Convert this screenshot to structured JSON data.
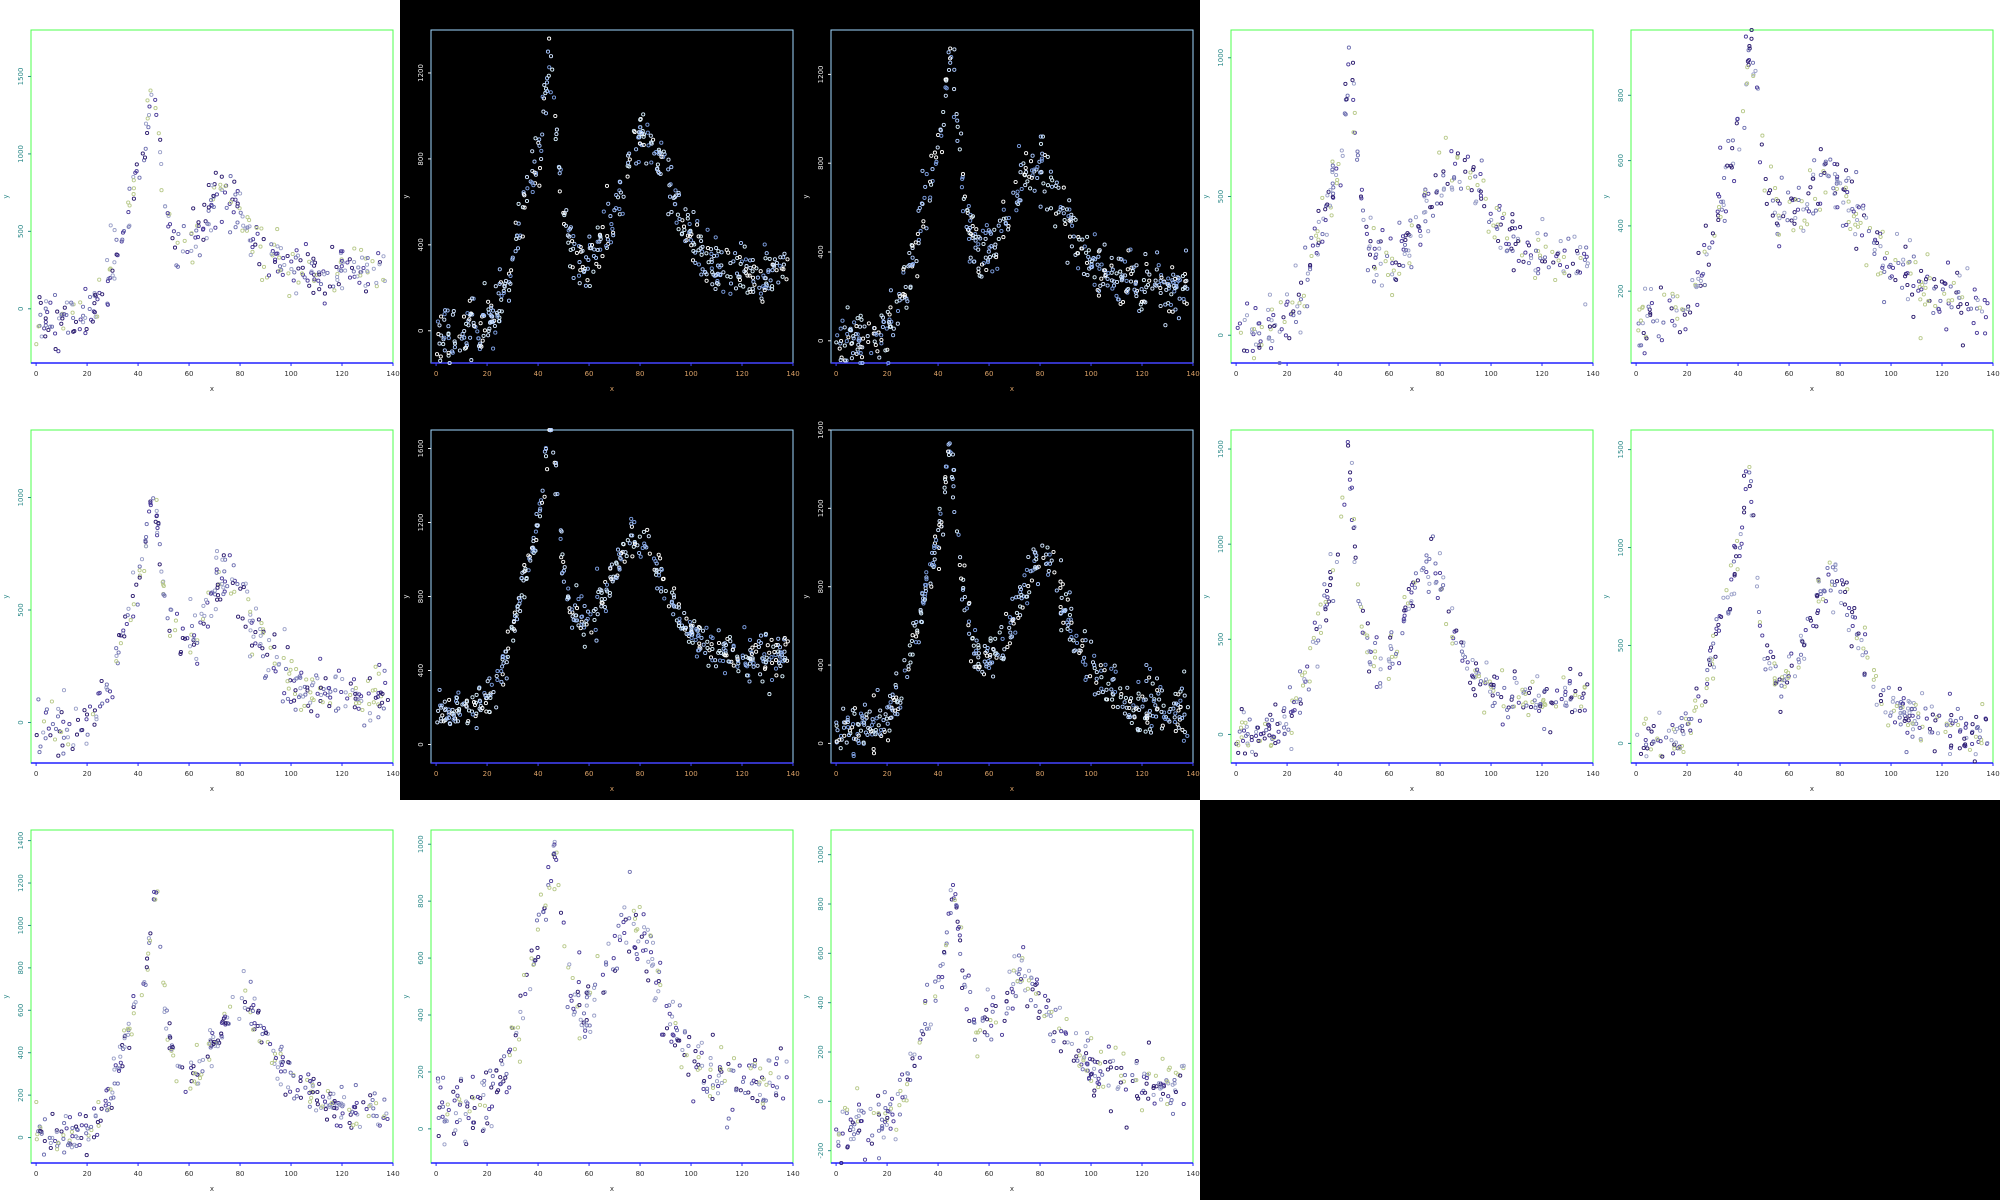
{
  "layout": {
    "rows": 3,
    "cols": 5,
    "panel_count": 13,
    "empty_cells": [
      "row3-col4",
      "row3-col5"
    ]
  },
  "theme": {
    "light": {
      "background": "#ffffff",
      "frame": "#4cff4c",
      "xaxis": "#2020ff",
      "ytick": "#2d8a8a",
      "xtick": "#303030",
      "points": [
        "#2b1b6e",
        "#4b3c9a",
        "#6d6fb0",
        "#9aa0c8",
        "#b8c98a"
      ]
    },
    "dark": {
      "background": "#000000",
      "frame": "#9fd8ff",
      "xaxis": "#4444ff",
      "ytick": "#e8e8e8",
      "xtick": "#d9a066",
      "points": [
        "#ffffff",
        "#cfe3ff",
        "#a9c8ff",
        "#7d9fe0",
        "#d8f0ff"
      ]
    }
  },
  "chart_data": [
    {
      "id": 1,
      "type": "scatter",
      "style": "light",
      "xlabel": "x",
      "ylabel": "y",
      "xlim": [
        -2,
        140
      ],
      "ylim": [
        -350,
        1800
      ],
      "xticks": [
        "0",
        "20",
        "40",
        "60",
        "80",
        "100",
        "120",
        "140"
      ],
      "yticks": [
        "0",
        "500",
        "1000",
        "1500"
      ],
      "ytick_values": [
        0,
        500,
        1000,
        1500
      ],
      "profile": {
        "base": -120,
        "tail": 250,
        "peak1": {
          "x": 46,
          "h": 1500,
          "w": 3.2
        },
        "bump": {
          "x": 74,
          "h": 870,
          "w": 15
        },
        "noise": 110
      }
    },
    {
      "id": 2,
      "type": "scatter",
      "style": "dark",
      "xlabel": "x",
      "ylabel": "y",
      "xlim": [
        -2,
        140
      ],
      "ylim": [
        -150,
        1400
      ],
      "xticks": [
        "0",
        "20",
        "40",
        "60",
        "80",
        "100",
        "120",
        "140"
      ],
      "yticks": [
        "0",
        "400",
        "800",
        "1200"
      ],
      "ytick_values": [
        0,
        400,
        800,
        1200
      ],
      "profile": {
        "base": -40,
        "tail": 220,
        "peak1": {
          "x": 45,
          "h": 1230,
          "w": 3.3
        },
        "bump": {
          "x": 82,
          "h": 1020,
          "w": 14
        },
        "noise": 80
      }
    },
    {
      "id": 3,
      "type": "scatter",
      "style": "dark",
      "xlabel": "x",
      "ylabel": "y",
      "xlim": [
        -2,
        140
      ],
      "ylim": [
        -100,
        1400
      ],
      "xticks": [
        "0",
        "20",
        "40",
        "60",
        "80",
        "100",
        "120",
        "140"
      ],
      "yticks": [
        "0",
        "400",
        "800",
        "1200"
      ],
      "ytick_values": [
        0,
        400,
        800,
        1200
      ],
      "profile": {
        "base": -30,
        "tail": 200,
        "peak1": {
          "x": 45,
          "h": 1250,
          "w": 3.4
        },
        "bump": {
          "x": 78,
          "h": 860,
          "w": 17
        },
        "noise": 80
      }
    },
    {
      "id": 4,
      "type": "scatter",
      "style": "light",
      "xlabel": "x",
      "ylabel": "y",
      "xlim": [
        -2,
        140
      ],
      "ylim": [
        -100,
        1100
      ],
      "xticks": [
        "0",
        "20",
        "40",
        "60",
        "80",
        "100",
        "120",
        "140"
      ],
      "yticks": [
        "0",
        "500",
        "1000"
      ],
      "ytick_values": [
        0,
        500,
        1000
      ],
      "profile": {
        "base": 0,
        "tail": 210,
        "peak1": {
          "x": 45,
          "h": 900,
          "w": 3.0
        },
        "bump": {
          "x": 86,
          "h": 610,
          "w": 19
        },
        "noise": 65
      }
    },
    {
      "id": 5,
      "type": "scatter",
      "style": "light",
      "xlabel": "x",
      "ylabel": "y",
      "xlim": [
        -2,
        140
      ],
      "ylim": [
        -20,
        1000
      ],
      "xticks": [
        "0",
        "20",
        "40",
        "60",
        "80",
        "100",
        "120",
        "140"
      ],
      "yticks": [
        "200",
        "400",
        "600",
        "800"
      ],
      "ytick_values": [
        200,
        400,
        600,
        800
      ],
      "profile": {
        "base": 90,
        "tail": 100,
        "peak1": {
          "x": 45,
          "h": 780,
          "w": 3.6
        },
        "bump": {
          "x": 75,
          "h": 520,
          "w": 22
        },
        "noise": 65
      }
    },
    {
      "id": 6,
      "type": "scatter",
      "style": "light",
      "xlabel": "x",
      "ylabel": "y",
      "xlim": [
        -2,
        140
      ],
      "ylim": [
        -180,
        1300
      ],
      "xticks": [
        "0",
        "20",
        "40",
        "60",
        "80",
        "100",
        "120",
        "140"
      ],
      "yticks": [
        "0",
        "500",
        "1000"
      ],
      "ytick_values": [
        0,
        500,
        1000
      ],
      "profile": {
        "base": -60,
        "tail": 90,
        "peak1": {
          "x": 46,
          "h": 1050,
          "w": 3.2
        },
        "bump": {
          "x": 75,
          "h": 770,
          "w": 15
        },
        "noise": 75
      }
    },
    {
      "id": 7,
      "type": "scatter",
      "style": "dark",
      "xlabel": "x",
      "ylabel": "y",
      "xlim": [
        -2,
        140
      ],
      "ylim": [
        -100,
        1700
      ],
      "xticks": [
        "0",
        "20",
        "40",
        "60",
        "80",
        "100",
        "120",
        "140"
      ],
      "yticks": [
        "0",
        "400",
        "800",
        "1200",
        "1600"
      ],
      "ytick_values": [
        0,
        400,
        800,
        1200,
        1600
      ],
      "profile": {
        "base": 150,
        "tail": 410,
        "peak1": {
          "x": 45,
          "h": 1480,
          "w": 3.3
        },
        "bump": {
          "x": 78,
          "h": 1020,
          "w": 17
        },
        "noise": 70
      }
    },
    {
      "id": 8,
      "type": "scatter",
      "style": "dark",
      "xlabel": "x",
      "ylabel": "y",
      "xlim": [
        -2,
        140
      ],
      "ylim": [
        -100,
        1600
      ],
      "xticks": [
        "0",
        "20",
        "40",
        "60",
        "80",
        "100",
        "120",
        "140"
      ],
      "yticks": [
        "0",
        "400",
        "800",
        "1200",
        "1600"
      ],
      "ytick_values": [
        0,
        400,
        800,
        1200,
        1600
      ],
      "profile": {
        "base": 50,
        "tail": 100,
        "peak1": {
          "x": 45,
          "h": 1430,
          "w": 3.4
        },
        "bump": {
          "x": 80,
          "h": 1010,
          "w": 15
        },
        "noise": 80
      }
    },
    {
      "id": 9,
      "type": "scatter",
      "style": "light",
      "xlabel": "x",
      "ylabel": "y",
      "xlim": [
        -2,
        140
      ],
      "ylim": [
        -150,
        1600
      ],
      "xticks": [
        "0",
        "20",
        "40",
        "60",
        "80",
        "100",
        "120",
        "140"
      ],
      "yticks": [
        "0",
        "500",
        "1000",
        "1500"
      ],
      "ytick_values": [
        0,
        500,
        1000,
        1500
      ],
      "profile": {
        "base": -30,
        "tail": 180,
        "peak1": {
          "x": 44,
          "h": 1400,
          "w": 3.0
        },
        "bump": {
          "x": 75,
          "h": 1020,
          "w": 12
        },
        "noise": 85
      }
    },
    {
      "id": 10,
      "type": "scatter",
      "style": "light",
      "xlabel": "x",
      "ylabel": "y",
      "xlim": [
        -2,
        140
      ],
      "ylim": [
        -100,
        1600
      ],
      "xticks": [
        "0",
        "20",
        "40",
        "60",
        "80",
        "100",
        "120",
        "140"
      ],
      "yticks": [
        "0",
        "500",
        "1000",
        "1500"
      ],
      "ytick_values": [
        0,
        500,
        1000,
        1500
      ],
      "profile": {
        "base": 0,
        "tail": 0,
        "peak1": {
          "x": 44,
          "h": 1350,
          "w": 3.0
        },
        "bump": {
          "x": 77,
          "h": 1000,
          "w": 13
        },
        "noise": 80
      }
    },
    {
      "id": 11,
      "type": "scatter",
      "style": "light",
      "xlabel": "x",
      "ylabel": "y",
      "xlim": [
        -2,
        140
      ],
      "ylim": [
        -120,
        1450
      ],
      "xticks": [
        "0",
        "20",
        "40",
        "60",
        "80",
        "100",
        "120",
        "140"
      ],
      "yticks": [
        "0",
        "200",
        "400",
        "600",
        "800",
        "1000",
        "1200",
        "1400"
      ],
      "ytick_values": [
        0,
        200,
        400,
        600,
        800,
        1000,
        1200,
        1400
      ],
      "profile": {
        "base": -20,
        "tail": 100,
        "peak1": {
          "x": 47,
          "h": 1150,
          "w": 2.8
        },
        "bump": {
          "x": 80,
          "h": 710,
          "w": 16
        },
        "noise": 65
      }
    },
    {
      "id": 12,
      "type": "scatter",
      "style": "light",
      "xlabel": "x",
      "ylabel": "y",
      "xlim": [
        -2,
        140
      ],
      "ylim": [
        -120,
        1050
      ],
      "xticks": [
        "0",
        "20",
        "40",
        "60",
        "80",
        "100",
        "120",
        "140"
      ],
      "yticks": [
        "0",
        "200",
        "400",
        "600",
        "800",
        "1000"
      ],
      "ytick_values": [
        0,
        200,
        400,
        600,
        800,
        1000
      ],
      "profile": {
        "base": 40,
        "tail": 110,
        "peak1": {
          "x": 46,
          "h": 880,
          "w": 3.8
        },
        "bump": {
          "x": 76,
          "h": 740,
          "w": 16
        },
        "noise": 75
      }
    },
    {
      "id": 13,
      "type": "scatter",
      "style": "light",
      "xlabel": "x",
      "ylabel": "y",
      "xlim": [
        -2,
        140
      ],
      "ylim": [
        -250,
        1100
      ],
      "xticks": [
        "0",
        "20",
        "40",
        "60",
        "80",
        "100",
        "120",
        "140"
      ],
      "yticks": [
        "-200",
        "0",
        "200",
        "400",
        "600",
        "800",
        "1000"
      ],
      "ytick_values": [
        -200,
        0,
        200,
        400,
        600,
        800,
        1000
      ],
      "profile": {
        "base": -120,
        "tail": 30,
        "peak1": {
          "x": 46,
          "h": 890,
          "w": 3.3
        },
        "bump": {
          "x": 73,
          "h": 680,
          "w": 17
        },
        "noise": 70
      }
    }
  ]
}
